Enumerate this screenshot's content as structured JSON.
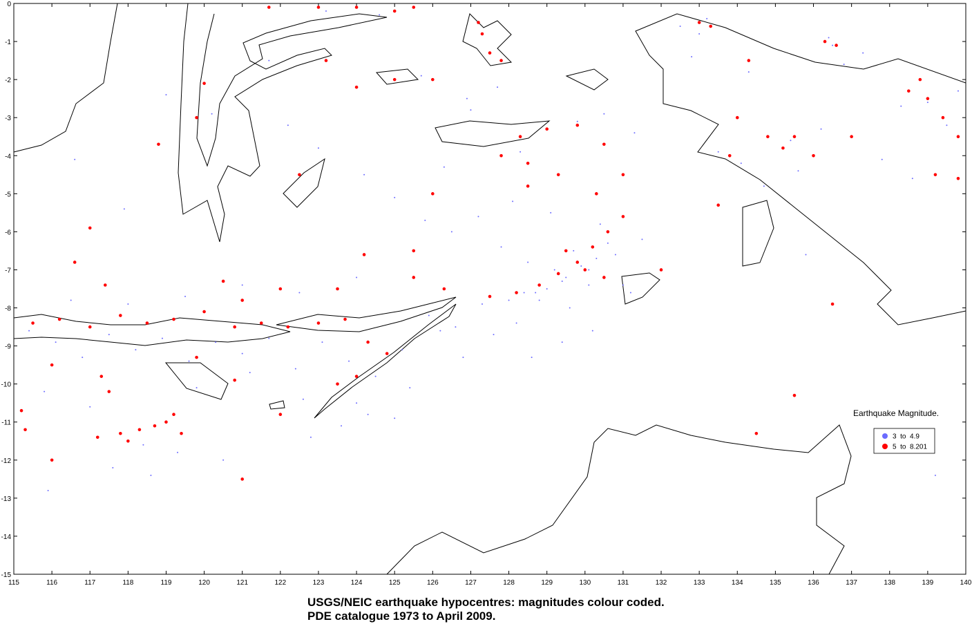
{
  "chart_data": {
    "type": "scatter",
    "title": "USGS/NEIC earthquake hypocentres: magnitudes colour coded.",
    "subtitle": "PDE catalogue 1973 to April 2009.",
    "legend_title": "Earthquake Magnitude.",
    "xlim": [
      115,
      140
    ],
    "ylim": [
      -15,
      0
    ],
    "xticks": [
      115,
      116,
      117,
      118,
      119,
      120,
      121,
      122,
      123,
      124,
      125,
      126,
      127,
      128,
      129,
      130,
      131,
      132,
      133,
      134,
      135,
      136,
      137,
      138,
      139,
      140
    ],
    "yticks": [
      0,
      -1,
      -2,
      -3,
      -4,
      -5,
      -6,
      -7,
      -8,
      -9,
      -10,
      -11,
      -12,
      -13,
      -14,
      -15
    ],
    "series": [
      {
        "name": "3  to  4.9",
        "color": "#6b6bff",
        "x": [
          115.4,
          116.1,
          116.8,
          117.5,
          118.2,
          118.9,
          119.6,
          120.3,
          121,
          121.7,
          122.4,
          123.1,
          123.8,
          124.5,
          125.2,
          125.9,
          126.6,
          127.3,
          128,
          128.7,
          129.4,
          130.1,
          130.8,
          131.5,
          115.8,
          117,
          118.4,
          119.8,
          121.2,
          122.6,
          124,
          125.4,
          126.8,
          128.2,
          129.6,
          131,
          116.5,
          118,
          119.5,
          121,
          122.5,
          124,
          117.6,
          118.6,
          119.3,
          120.5,
          122.8,
          123.6,
          124.3,
          125,
          126.2,
          127.6,
          128.4,
          129,
          129.5,
          129.9,
          130.3,
          130.6,
          129.2,
          128.8,
          130.1,
          129.7,
          128.5,
          127.8,
          131.2,
          130.4,
          129.1,
          128.1,
          127.2,
          126.5,
          122.2,
          123,
          124.2,
          125,
          125.8,
          126.3,
          127,
          127.7,
          128.3,
          129.8,
          130.5,
          131.3,
          132.5,
          133.2,
          134.3,
          135.4,
          136.5,
          137.3,
          138.3,
          139,
          139.5,
          139.8,
          133.5,
          134.1,
          134.7,
          135.6,
          136.2,
          137.8,
          138.6,
          132.8,
          133,
          136.4,
          136.8,
          129.4,
          130.2,
          128.6,
          123.2,
          124.6,
          120.2,
          119,
          117.9,
          116.6,
          115.9,
          121.7,
          125.7,
          126.9,
          135.8,
          139.2
        ],
        "values": [
          -8.6,
          -8.9,
          -9.3,
          -8.7,
          -9.1,
          -8.8,
          -9.4,
          -8.9,
          -9.2,
          -8.8,
          -9.6,
          -8.9,
          -9.4,
          -9.8,
          -9.1,
          -8.2,
          -8.5,
          -7.9,
          -7.8,
          -7.6,
          -7.3,
          -7,
          -6.6,
          -6.2,
          -10.2,
          -10.6,
          -11.6,
          -10.1,
          -9.7,
          -10.4,
          -10.5,
          -10.1,
          -9.3,
          -8.4,
          -8,
          -7.4,
          -7.8,
          -7.9,
          -7.7,
          -7.4,
          -7.6,
          -7.2,
          -12.2,
          -12.4,
          -11.8,
          -12,
          -11.4,
          -11.1,
          -10.8,
          -10.9,
          -8.6,
          -8.7,
          -7.6,
          -7.5,
          -7.2,
          -6.9,
          -6.7,
          -6.3,
          -7,
          -7.8,
          -7.4,
          -6.5,
          -6.8,
          -6.4,
          -7.6,
          -5.8,
          -5.5,
          -5.2,
          -5.6,
          -6,
          -3.2,
          -3.8,
          -4.5,
          -5.1,
          -5.7,
          -4.3,
          -2.8,
          -2.2,
          -3.9,
          -3.1,
          -2.9,
          -3.4,
          -0.6,
          -0.4,
          -1.8,
          -3.6,
          -1.1,
          -1.3,
          -2.7,
          -2.6,
          -3.2,
          -2.3,
          -3.9,
          -4.2,
          -4.8,
          -4.4,
          -3.3,
          -4.1,
          -4.6,
          -1.4,
          -0.8,
          -0.9,
          -1.6,
          -8.9,
          -8.6,
          -9.3,
          -0.2,
          -0.3,
          -2.9,
          -2.4,
          -5.4,
          -4.1,
          -12.8,
          -1.5,
          -1.9,
          -2.5,
          -6.6,
          -12.4
        ]
      },
      {
        "name": "5  to  8.201",
        "color": "#ff0000",
        "x": [
          115.5,
          116.2,
          117,
          117.8,
          118.5,
          119.2,
          120,
          120.8,
          121.5,
          122.2,
          123,
          123.7,
          124.3,
          124.8,
          125.5,
          126.3,
          127.5,
          128.2,
          128.8,
          129.3,
          129.8,
          130.2,
          130.6,
          131,
          130,
          129.5,
          130.5,
          131,
          130.5,
          129.8,
          129,
          128.3,
          127.8,
          128.5,
          129.3,
          130.3,
          117.3,
          117.5,
          117.2,
          117.8,
          118.3,
          118.7,
          119,
          119.2,
          119.4,
          118,
          115.3,
          115.2,
          116,
          120.5,
          119.8,
          120.8,
          122,
          123.5,
          124,
          121.7,
          123,
          124,
          125,
          125.5,
          127.3,
          127.5,
          127.8,
          127.2,
          126,
          125,
          124,
          120,
          119.8,
          123.2,
          133,
          133.3,
          136.3,
          136.6,
          134.3,
          134,
          133.8,
          133.5,
          134.8,
          135.5,
          135.2,
          136,
          137,
          138.5,
          139,
          139.4,
          139.8,
          139.2,
          139.8,
          138.8,
          128.5,
          126,
          125.5,
          123.5,
          122,
          121,
          132,
          134.5,
          135.5,
          136.5,
          116.6,
          117.4,
          117,
          118.8,
          122.5,
          124.2,
          121,
          116
        ],
        "values": [
          -8.4,
          -8.3,
          -8.5,
          -8.2,
          -8.4,
          -8.3,
          -8.1,
          -8.5,
          -8.4,
          -8.5,
          -8.4,
          -8.3,
          -8.9,
          -9.2,
          -7.2,
          -7.5,
          -7.7,
          -7.6,
          -7.4,
          -7.1,
          -6.8,
          -6.4,
          -6,
          -5.6,
          -7,
          -6.5,
          -7.2,
          -4.5,
          -3.7,
          -3.2,
          -3.3,
          -3.5,
          -4,
          -4.2,
          -4.5,
          -5,
          -9.8,
          -10.2,
          -11.4,
          -11.3,
          -11.2,
          -11.1,
          -11,
          -10.8,
          -11.3,
          -11.5,
          -11.2,
          -10.7,
          -9.5,
          -7.3,
          -9.3,
          -9.9,
          -10.8,
          -10,
          -9.8,
          -0.1,
          -0.1,
          -0.1,
          -0.2,
          -0.1,
          -0.8,
          -1.3,
          -1.5,
          -0.5,
          -2,
          -2,
          -2.2,
          -2.1,
          -3,
          -1.5,
          -0.5,
          -0.6,
          -1,
          -1.1,
          -1.5,
          -3,
          -4,
          -5.3,
          -3.5,
          -3.5,
          -3.8,
          -4,
          -3.5,
          -2.3,
          -2.5,
          -3,
          -3.5,
          -4.5,
          -4.6,
          -2,
          -4.8,
          -5,
          -6.5,
          -7.5,
          -7.5,
          -7.8,
          -7,
          -11.3,
          -10.3,
          -7.9,
          -6.8,
          -7.4,
          -5.9,
          -3.7,
          -4.5,
          -6.6,
          -12.5,
          -12
        ]
      }
    ]
  }
}
